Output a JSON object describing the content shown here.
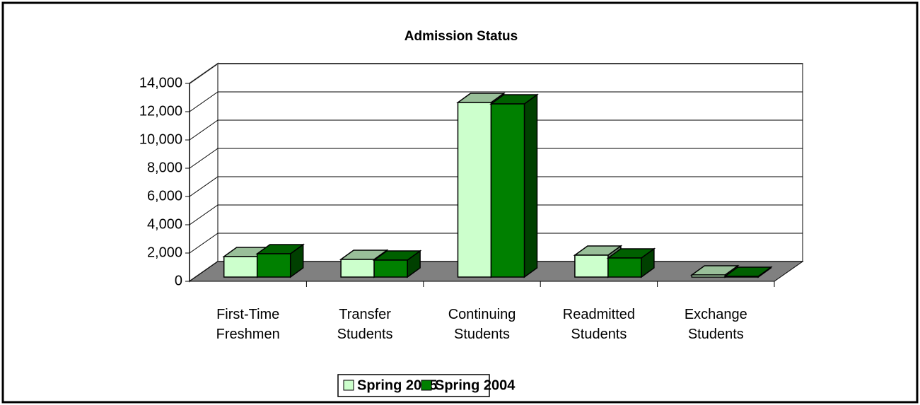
{
  "chart_data": {
    "type": "bar3d",
    "title": "Admission Status",
    "categories": [
      "First-Time Freshmen",
      "Transfer Students",
      "Continuing Students",
      "Readmitted Students",
      "Exchange Students"
    ],
    "series": [
      {
        "name": "Spring 2005",
        "color": "#ccffcc",
        "values": [
          1450,
          1250,
          12350,
          1550,
          150
        ]
      },
      {
        "name": "Spring 2004",
        "color": "#008000",
        "values": [
          1650,
          1200,
          12250,
          1350,
          50
        ]
      }
    ],
    "ylim": [
      0,
      14000
    ],
    "yticks": [
      {
        "value": 0,
        "label": "0"
      },
      {
        "value": 2000,
        "label": "2,000"
      },
      {
        "value": 4000,
        "label": "4,000"
      },
      {
        "value": 6000,
        "label": "6,000"
      },
      {
        "value": 8000,
        "label": "8,000"
      },
      {
        "value": 10000,
        "label": "10,000"
      },
      {
        "value": 12000,
        "label": "12,000"
      },
      {
        "value": 14000,
        "label": "14,000"
      }
    ],
    "grid": true,
    "legend": "bottom"
  }
}
